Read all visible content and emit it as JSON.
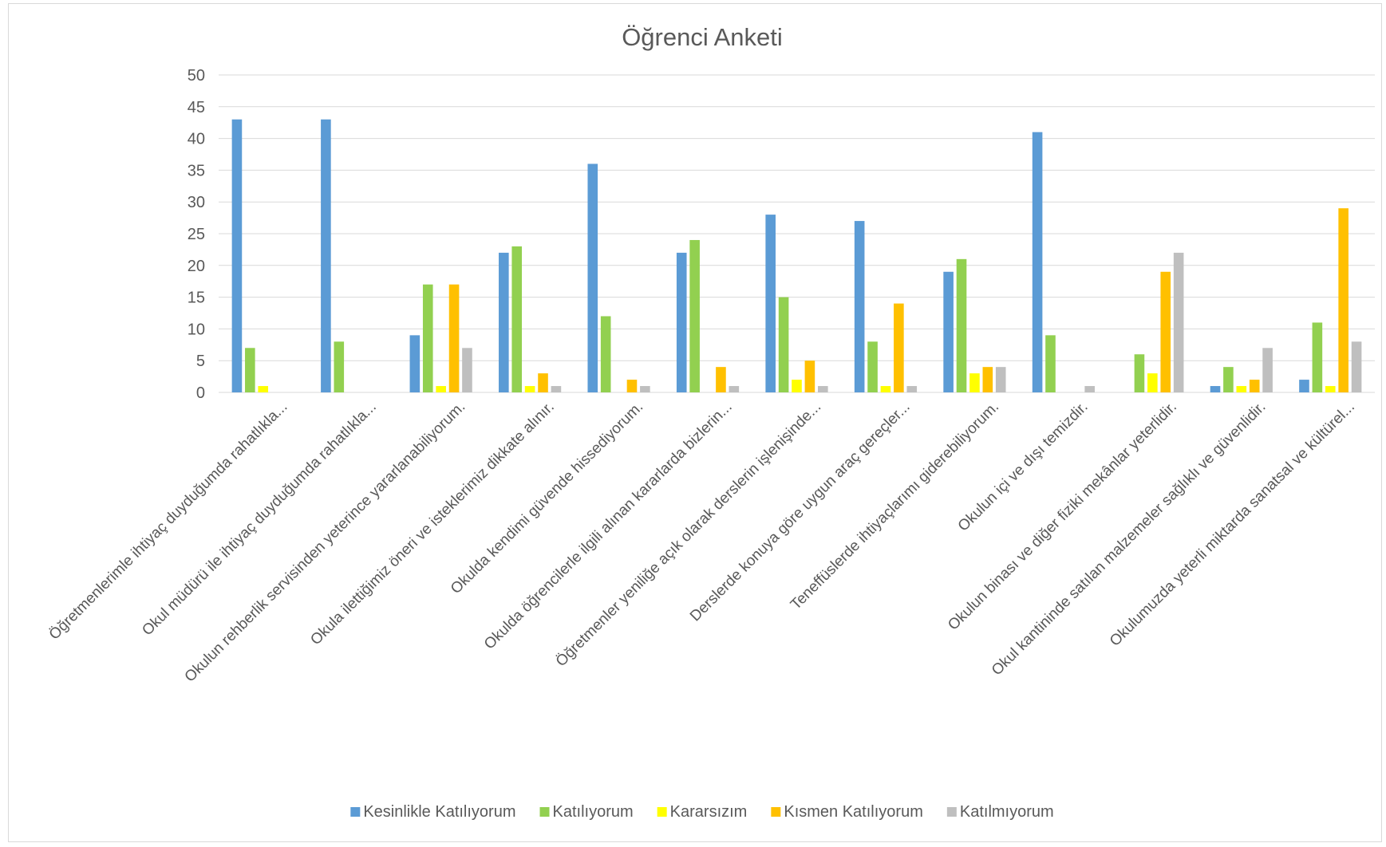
{
  "chart_data": {
    "type": "bar",
    "title": "Öğrenci Anketi",
    "xlabel": "",
    "ylabel": "",
    "ylim": [
      0,
      50
    ],
    "yticks": [
      0,
      5,
      10,
      15,
      20,
      25,
      30,
      35,
      40,
      45,
      50
    ],
    "grid": true,
    "legend_position": "bottom",
    "categories": [
      "Öğretmenlerimle ihtiyaç duyduğumda rahatlıkla...",
      "Okul müdürü ile ihtiyaç duyduğumda rahatlıkla...",
      "Okulun rehberlik servisinden yeterince yararlanabiliyorum.",
      "Okula ilettiğimiz öneri ve isteklerimiz dikkate alınır.",
      "Okulda kendimi güvende hissediyorum.",
      "Okulda öğrencilerle ilgili alınan kararlarda bizlerin...",
      "Öğretmenler yeniliğe açık olarak derslerin işlenişinde...",
      "Derslerde konuya göre uygun araç gereçler...",
      "Teneffüslerde ihtiyaçlarımı giderebiliyorum.",
      "Okulun içi ve dışı temizdir.",
      "Okulun binası ve diğer fiziki mekânlar yeterlidir.",
      "Okul kantininde satılan malzemeler sağlıklı ve güvenlidir.",
      "Okulumuzda yeterli miktarda sanatsal ve kültürel..."
    ],
    "series": [
      {
        "name": "Kesinlikle Katılıyorum",
        "color": "#5B9BD5",
        "values": [
          43,
          43,
          9,
          22,
          36,
          22,
          28,
          27,
          19,
          41,
          0,
          1,
          2
        ]
      },
      {
        "name": "Katılıyorum",
        "color": "#92D050",
        "values": [
          7,
          8,
          17,
          23,
          12,
          24,
          15,
          8,
          21,
          9,
          6,
          4,
          11
        ]
      },
      {
        "name": "Kararsızım",
        "color": "#FFFF00",
        "values": [
          1,
          0,
          1,
          1,
          0,
          0,
          2,
          1,
          3,
          0,
          3,
          1,
          1
        ]
      },
      {
        "name": "Kısmen Katılıyorum",
        "color": "#FFC000",
        "values": [
          0,
          0,
          17,
          3,
          2,
          4,
          5,
          14,
          4,
          0,
          19,
          2,
          29
        ]
      },
      {
        "name": "Katılmıyorum",
        "color": "#BFBFBF",
        "values": [
          0,
          0,
          7,
          1,
          1,
          1,
          1,
          1,
          4,
          1,
          22,
          7,
          8
        ]
      }
    ]
  }
}
